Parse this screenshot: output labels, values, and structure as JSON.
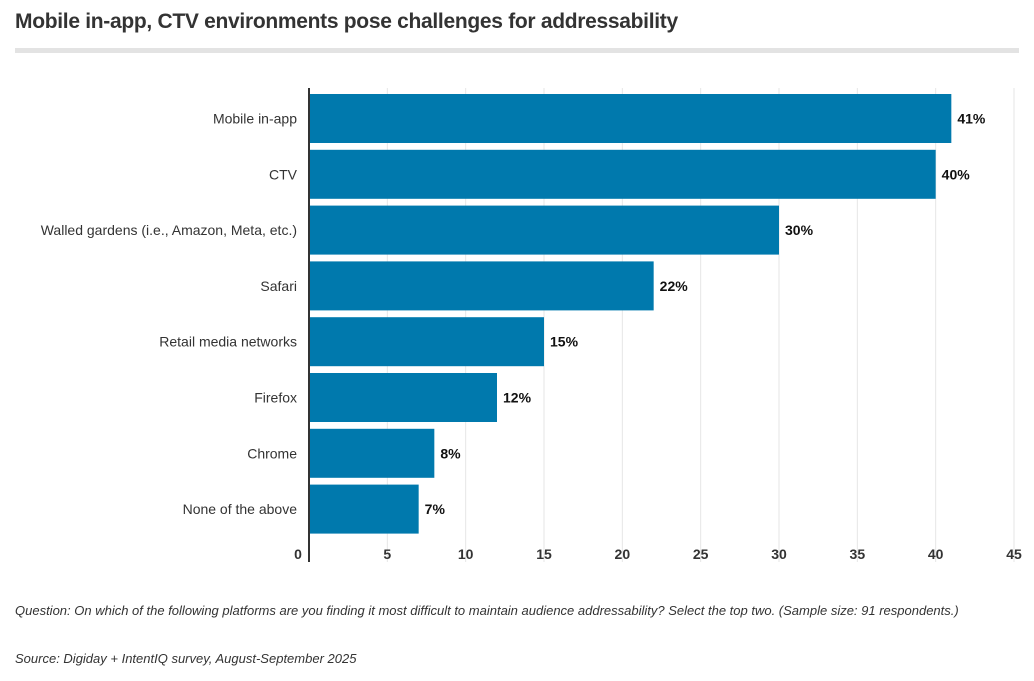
{
  "title": "Mobile in-app, CTV environments pose challenges for addressability",
  "question": "Question: On which of the following platforms are you finding it most difficult to maintain audience addressability? Select the top two. (Sample size: 91 respondents.)",
  "source": "Source: Digiday + IntentIQ survey, August-September 2025",
  "colors": {
    "bar": "#0079ad",
    "grid": "#e6e6e6",
    "axis": "#333333"
  },
  "chart_data": {
    "type": "bar",
    "orientation": "horizontal",
    "categories": [
      "Mobile in-app",
      "CTV",
      "Walled gardens (i.e., Amazon, Meta, etc.)",
      "Safari",
      "Retail media networks",
      "Firefox",
      "Chrome",
      "None of the above"
    ],
    "values": [
      41,
      40,
      30,
      22,
      15,
      12,
      8,
      7
    ],
    "data_labels": [
      "41%",
      "40%",
      "30%",
      "22%",
      "15%",
      "12%",
      "8%",
      "7%"
    ],
    "xlim": [
      0,
      45
    ],
    "xticks": [
      0,
      5,
      10,
      15,
      20,
      25,
      30,
      35,
      40,
      45
    ],
    "grid": true
  }
}
